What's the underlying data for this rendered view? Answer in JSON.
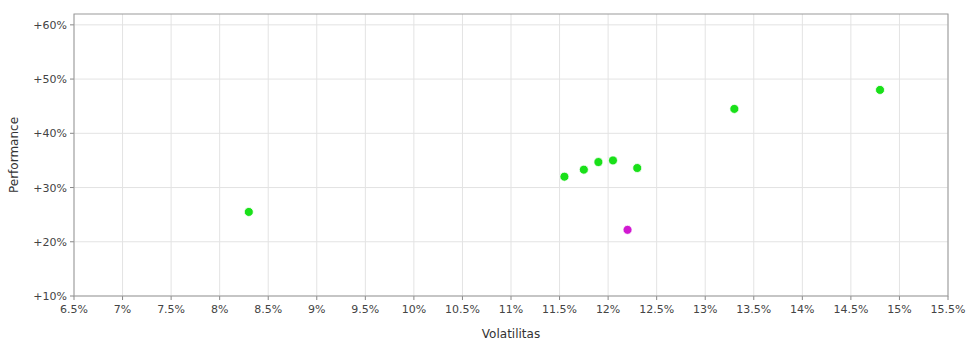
{
  "chart_data": {
    "type": "scatter",
    "xlabel": "Volatilitas",
    "ylabel": "Performance",
    "xlim": [
      0.065,
      0.155
    ],
    "ylim": [
      0.1,
      0.62
    ],
    "xticks": [
      {
        "value": 0.065,
        "label": "6.5%"
      },
      {
        "value": 0.07,
        "label": "7%"
      },
      {
        "value": 0.075,
        "label": "7.5%"
      },
      {
        "value": 0.08,
        "label": "8%"
      },
      {
        "value": 0.085,
        "label": "8.5%"
      },
      {
        "value": 0.09,
        "label": "9%"
      },
      {
        "value": 0.095,
        "label": "9.5%"
      },
      {
        "value": 0.1,
        "label": "10%"
      },
      {
        "value": 0.105,
        "label": "10.5%"
      },
      {
        "value": 0.11,
        "label": "11%"
      },
      {
        "value": 0.115,
        "label": "11.5%"
      },
      {
        "value": 0.12,
        "label": "12%"
      },
      {
        "value": 0.125,
        "label": "12.5%"
      },
      {
        "value": 0.13,
        "label": "13%"
      },
      {
        "value": 0.135,
        "label": "13.5%"
      },
      {
        "value": 0.14,
        "label": "14%"
      },
      {
        "value": 0.145,
        "label": "14.5%"
      },
      {
        "value": 0.15,
        "label": "15%"
      },
      {
        "value": 0.155,
        "label": "15.5%"
      }
    ],
    "yticks": [
      {
        "value": 0.1,
        "label": "+10%"
      },
      {
        "value": 0.2,
        "label": "+20%"
      },
      {
        "value": 0.3,
        "label": "+30%"
      },
      {
        "value": 0.4,
        "label": "+40%"
      },
      {
        "value": 0.5,
        "label": "+50%"
      },
      {
        "value": 0.6,
        "label": "+60%"
      }
    ],
    "grid": true,
    "series": [
      {
        "color": "#00dd00",
        "x": [
          0.083,
          0.1155,
          0.1175,
          0.119,
          0.1205,
          0.123,
          0.133,
          0.148
        ],
        "values": [
          0.255,
          0.32,
          0.333,
          0.347,
          0.35,
          0.336,
          0.445,
          0.48
        ]
      },
      {
        "color": "#cc00cc",
        "x": [
          0.122
        ],
        "values": [
          0.222
        ]
      }
    ]
  }
}
